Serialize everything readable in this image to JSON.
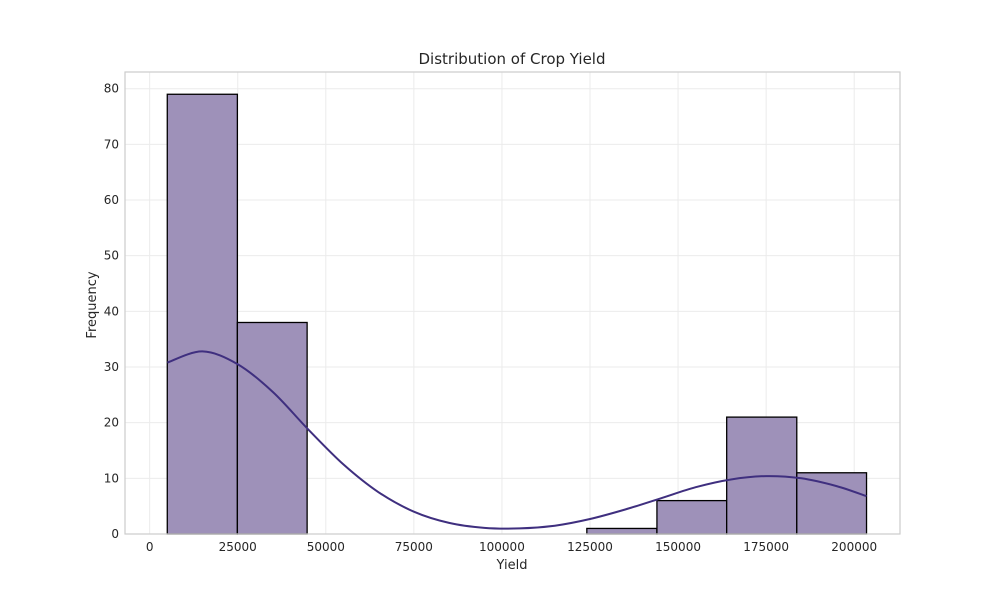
{
  "chart_data": {
    "type": "bar",
    "title": "Distribution of Crop Yield",
    "xlabel": "Yield",
    "ylabel": "Frequency",
    "xlim": [
      -7000,
      213000
    ],
    "ylim": [
      0,
      83
    ],
    "grid": true,
    "x_ticks": [
      0,
      25000,
      50000,
      75000,
      100000,
      125000,
      150000,
      175000,
      200000
    ],
    "y_ticks": [
      0,
      10,
      20,
      30,
      40,
      50,
      60,
      70,
      80
    ],
    "bins": [
      {
        "start": 5000,
        "end": 24900,
        "count": 79
      },
      {
        "start": 24900,
        "end": 44700,
        "count": 38
      },
      {
        "start": 44700,
        "end": 64600,
        "count": 0
      },
      {
        "start": 64600,
        "end": 84400,
        "count": 0
      },
      {
        "start": 84400,
        "end": 104300,
        "count": 0
      },
      {
        "start": 104300,
        "end": 124100,
        "count": 0
      },
      {
        "start": 124100,
        "end": 144000,
        "count": 1
      },
      {
        "start": 144000,
        "end": 163800,
        "count": 6
      },
      {
        "start": 163800,
        "end": 183700,
        "count": 21
      },
      {
        "start": 183700,
        "end": 203500,
        "count": 11
      }
    ],
    "kde": {
      "x": [
        5000,
        15000,
        25000,
        35000,
        45000,
        55000,
        65000,
        75000,
        85000,
        95000,
        105000,
        115000,
        125000,
        135000,
        145000,
        155000,
        165000,
        175000,
        185000,
        195000,
        203500
      ],
      "y": [
        30.8,
        32.8,
        30.5,
        25.5,
        18.8,
        12.5,
        7.5,
        4.0,
        2.0,
        1.1,
        1.0,
        1.5,
        2.7,
        4.4,
        6.4,
        8.4,
        9.8,
        10.4,
        10.0,
        8.6,
        6.8
      ]
    },
    "colors": {
      "bar_fill": "#9e91b9",
      "bar_edge": "#000000",
      "kde_line": "#3f2f7f",
      "grid": "#ebebeb",
      "frame": "#cccccc"
    }
  }
}
